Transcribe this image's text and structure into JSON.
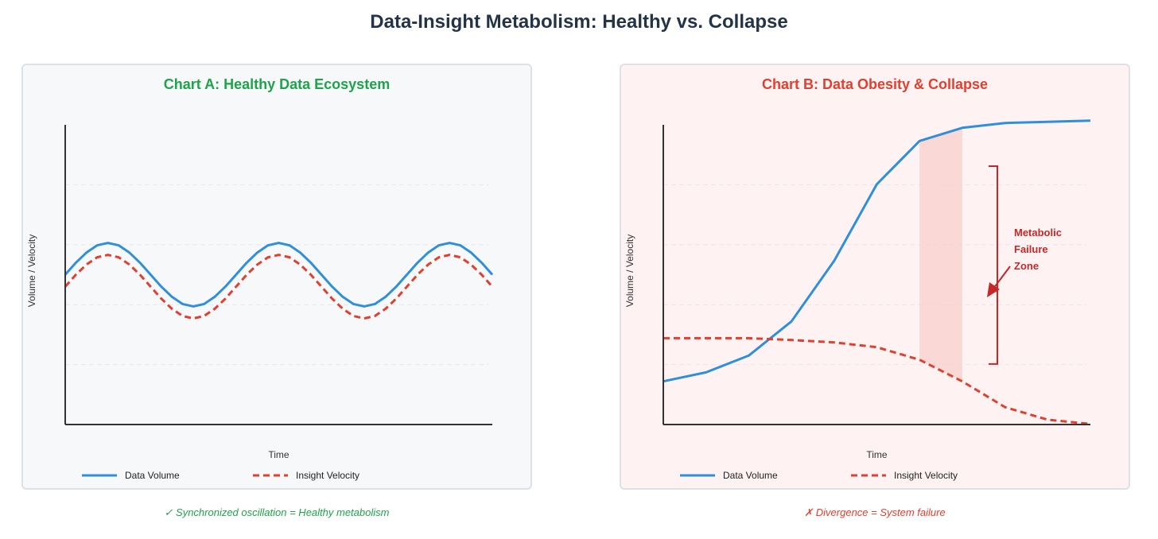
{
  "title": "Data-Insight Metabolism: Healthy vs. Collapse",
  "chart_data": [
    {
      "type": "line",
      "title": "Chart A: Healthy Data Ecosystem",
      "xlabel": "Time",
      "ylabel": "Volume / Velocity",
      "xlim": [
        0,
        10
      ],
      "ylim": [
        0,
        5
      ],
      "grid": true,
      "legend_placement": "bottom",
      "x": [
        0,
        0.25,
        0.5,
        0.75,
        1,
        1.25,
        1.5,
        1.75,
        2,
        2.25,
        2.5,
        2.75,
        3,
        3.25,
        3.5,
        3.75,
        4,
        4.25,
        4.5,
        4.75,
        5,
        5.25,
        5.5,
        5.75,
        6,
        6.25,
        6.5,
        6.75,
        7,
        7.25,
        7.5,
        7.75,
        8,
        8.25,
        8.5,
        8.75,
        9,
        9.25,
        9.5,
        9.75,
        10
      ],
      "series": [
        {
          "name": "Data Volume",
          "color": "#2f8fdc",
          "style": "solid",
          "values": [
            2.5,
            2.7,
            2.87,
            2.99,
            3.03,
            2.99,
            2.87,
            2.7,
            2.5,
            2.3,
            2.13,
            2.01,
            1.97,
            2.01,
            2.13,
            2.3,
            2.5,
            2.7,
            2.87,
            2.99,
            3.03,
            2.99,
            2.87,
            2.7,
            2.5,
            2.3,
            2.13,
            2.01,
            1.97,
            2.01,
            2.13,
            2.3,
            2.5,
            2.7,
            2.87,
            2.99,
            3.03,
            2.99,
            2.87,
            2.7,
            2.5
          ]
        },
        {
          "name": "Insight Velocity",
          "color": "#e0402f",
          "style": "dashed",
          "values": [
            2.3,
            2.5,
            2.67,
            2.79,
            2.83,
            2.79,
            2.67,
            2.5,
            2.3,
            2.1,
            1.93,
            1.81,
            1.77,
            1.81,
            1.93,
            2.1,
            2.3,
            2.5,
            2.67,
            2.79,
            2.83,
            2.79,
            2.67,
            2.5,
            2.3,
            2.1,
            1.93,
            1.81,
            1.77,
            1.81,
            1.93,
            2.1,
            2.3,
            2.5,
            2.67,
            2.79,
            2.83,
            2.79,
            2.67,
            2.5,
            2.3
          ]
        }
      ],
      "caption": "✓ Synchronized oscillation = Healthy metabolism"
    },
    {
      "type": "line",
      "title": "Chart B: Data Obesity & Collapse",
      "xlabel": "Time",
      "ylabel": "Volume / Velocity",
      "xlim": [
        0,
        10
      ],
      "ylim": [
        0,
        5
      ],
      "grid": true,
      "legend_placement": "bottom",
      "x": [
        0,
        1,
        2,
        3,
        4,
        5,
        6,
        7,
        8,
        9,
        10
      ],
      "series": [
        {
          "name": "Data Volume",
          "color": "#2f8fdc",
          "style": "solid",
          "values": [
            0.72,
            0.87,
            1.15,
            1.72,
            2.73,
            4.01,
            4.73,
            4.95,
            5.03,
            5.05,
            5.07
          ]
        },
        {
          "name": "Insight Velocity",
          "color": "#e0402f",
          "style": "dashed",
          "values": [
            1.44,
            1.44,
            1.44,
            1.41,
            1.37,
            1.29,
            1.08,
            0.72,
            0.29,
            0.08,
            0.01
          ]
        }
      ],
      "shaded_region": {
        "x": [
          6,
          7
        ]
      },
      "annotation": {
        "text": [
          "Metabolic",
          "Failure",
          "Zone"
        ],
        "bracket_y": [
          1.01,
          4.31
        ]
      },
      "caption": "✗ Divergence = System failure"
    }
  ]
}
